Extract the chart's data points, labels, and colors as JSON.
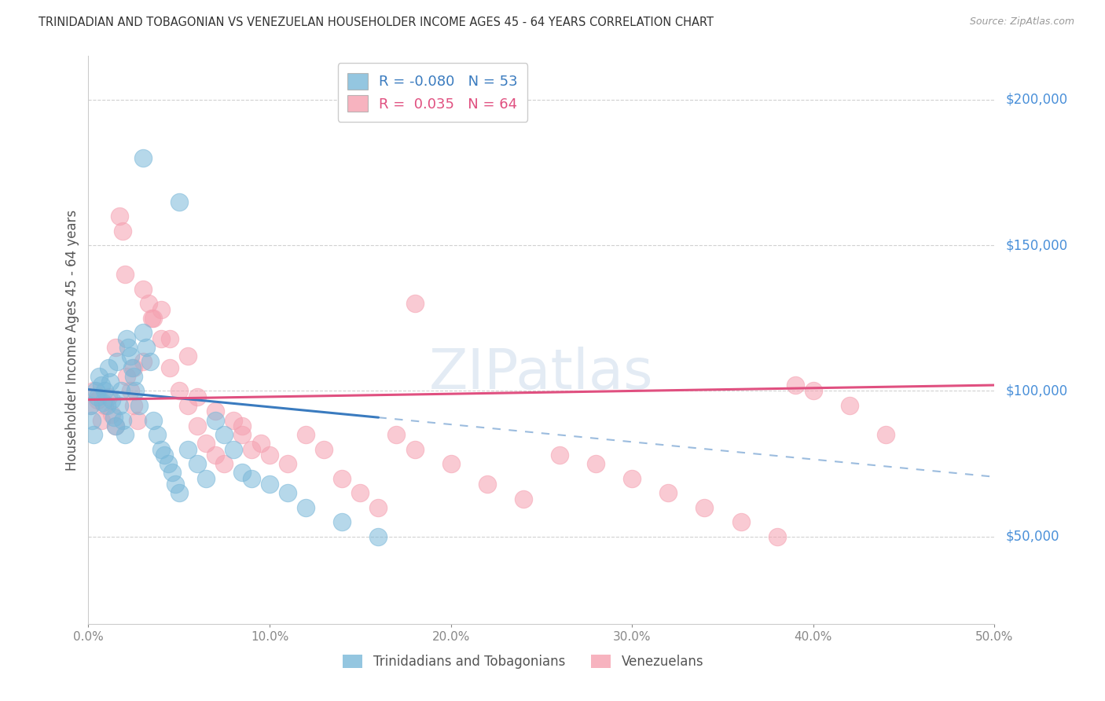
{
  "title": "TRINIDADIAN AND TOBAGONIAN VS VENEZUELAN HOUSEHOLDER INCOME AGES 45 - 64 YEARS CORRELATION CHART",
  "source": "Source: ZipAtlas.com",
  "ylabel": "Householder Income Ages 45 - 64 years",
  "xlim": [
    0.0,
    0.5
  ],
  "ylim": [
    20000,
    215000
  ],
  "yticks": [
    50000,
    100000,
    150000,
    200000
  ],
  "ytick_labels": [
    "$50,000",
    "$100,000",
    "$150,000",
    "$200,000"
  ],
  "xtick_labels": [
    "0.0%",
    "10.0%",
    "20.0%",
    "30.0%",
    "40.0%",
    "50.0%"
  ],
  "xtick_positions": [
    0.0,
    0.1,
    0.2,
    0.3,
    0.4,
    0.5
  ],
  "blue_R": -0.08,
  "blue_N": 53,
  "pink_R": 0.035,
  "pink_N": 64,
  "blue_color": "#7ab8d9",
  "pink_color": "#f5a0b0",
  "blue_line_color": "#3a7bbf",
  "pink_line_color": "#e05080",
  "blue_tick_color": "#4a90d9",
  "legend1_label": "Trinidadians and Tobagonians",
  "legend2_label": "Venezuelans",
  "blue_x": [
    0.001,
    0.002,
    0.003,
    0.004,
    0.005,
    0.006,
    0.007,
    0.008,
    0.009,
    0.01,
    0.011,
    0.012,
    0.013,
    0.014,
    0.015,
    0.016,
    0.017,
    0.018,
    0.019,
    0.02,
    0.021,
    0.022,
    0.023,
    0.024,
    0.025,
    0.026,
    0.028,
    0.03,
    0.032,
    0.034,
    0.036,
    0.038,
    0.04,
    0.042,
    0.044,
    0.046,
    0.048,
    0.05,
    0.055,
    0.06,
    0.065,
    0.07,
    0.075,
    0.08,
    0.085,
    0.09,
    0.1,
    0.11,
    0.12,
    0.14,
    0.16,
    0.03,
    0.05
  ],
  "blue_y": [
    95000,
    90000,
    85000,
    100000,
    98000,
    105000,
    102000,
    96000,
    100000,
    95000,
    108000,
    103000,
    97000,
    91000,
    88000,
    110000,
    95000,
    100000,
    90000,
    85000,
    118000,
    115000,
    112000,
    108000,
    105000,
    100000,
    95000,
    120000,
    115000,
    110000,
    90000,
    85000,
    80000,
    78000,
    75000,
    72000,
    68000,
    65000,
    80000,
    75000,
    70000,
    90000,
    85000,
    80000,
    72000,
    70000,
    68000,
    65000,
    60000,
    55000,
    50000,
    180000,
    165000
  ],
  "pink_x": [
    0.001,
    0.003,
    0.005,
    0.007,
    0.009,
    0.011,
    0.013,
    0.015,
    0.017,
    0.019,
    0.021,
    0.023,
    0.025,
    0.027,
    0.03,
    0.033,
    0.036,
    0.04,
    0.045,
    0.05,
    0.055,
    0.06,
    0.065,
    0.07,
    0.075,
    0.08,
    0.085,
    0.09,
    0.1,
    0.11,
    0.12,
    0.13,
    0.14,
    0.15,
    0.16,
    0.17,
    0.18,
    0.2,
    0.22,
    0.24,
    0.26,
    0.28,
    0.3,
    0.32,
    0.34,
    0.36,
    0.38,
    0.4,
    0.42,
    0.44,
    0.015,
    0.025,
    0.035,
    0.045,
    0.055,
    0.02,
    0.03,
    0.04,
    0.06,
    0.07,
    0.085,
    0.095,
    0.18,
    0.39
  ],
  "pink_y": [
    95000,
    100000,
    97000,
    90000,
    95000,
    98000,
    92000,
    88000,
    160000,
    155000,
    105000,
    100000,
    95000,
    90000,
    110000,
    130000,
    125000,
    118000,
    108000,
    100000,
    95000,
    88000,
    82000,
    78000,
    75000,
    90000,
    85000,
    80000,
    78000,
    75000,
    85000,
    80000,
    70000,
    65000,
    60000,
    85000,
    80000,
    75000,
    68000,
    63000,
    78000,
    75000,
    70000,
    65000,
    60000,
    55000,
    50000,
    100000,
    95000,
    85000,
    115000,
    108000,
    125000,
    118000,
    112000,
    140000,
    135000,
    128000,
    98000,
    93000,
    88000,
    82000,
    130000,
    102000
  ]
}
